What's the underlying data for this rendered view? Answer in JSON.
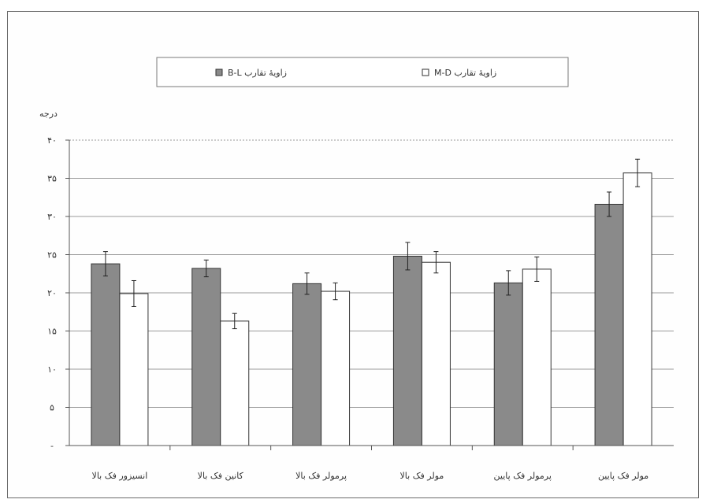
{
  "chart_data": {
    "type": "bar",
    "ylabel": "درجه",
    "ylim": [
      0,
      40
    ],
    "ytick_labels": [
      "-",
      "۵",
      "۱۰",
      "۱۵",
      "۲۰",
      "۲۵",
      "۳۰",
      "۳۵",
      "۴۰"
    ],
    "categories": [
      "انسیزور فک بالا",
      "کانین فک بالا",
      "پرمولر فک بالا",
      "مولر فک بالا",
      "پرمولر فک پایین",
      "مولر فک پایین"
    ],
    "legend_position": "top",
    "grid": true,
    "series": [
      {
        "name": "زاویهٔ تقارب M-D",
        "color": "#ffffff",
        "values": [
          19.9,
          16.3,
          20.2,
          24.0,
          23.1,
          35.7
        ],
        "errors": [
          1.7,
          1.0,
          1.1,
          1.4,
          1.6,
          1.8
        ]
      },
      {
        "name": "زاویهٔ تقارب B-L",
        "color": "#8a8a8a",
        "values": [
          23.8,
          23.2,
          21.2,
          24.8,
          21.3,
          31.6
        ],
        "errors": [
          1.6,
          1.1,
          1.4,
          1.8,
          1.6,
          1.6
        ]
      }
    ]
  }
}
